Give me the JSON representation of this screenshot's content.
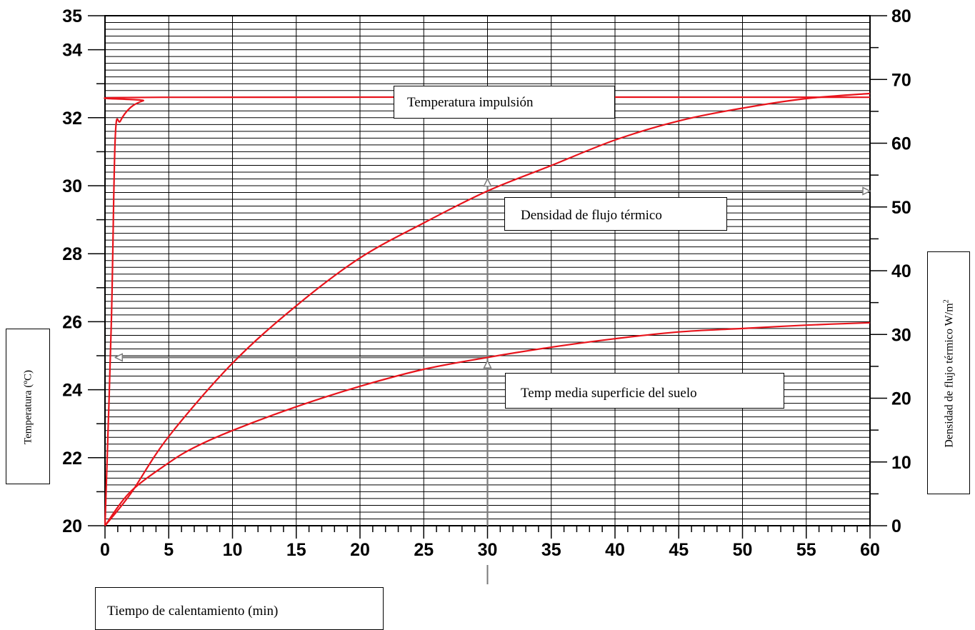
{
  "chart_data": {
    "type": "line",
    "xlabel": "Tiempo de calentamiento (min)",
    "ylabel_left": "Temperatura (ºC)",
    "ylabel_right_text": "Densidad de flujo térmico W/m",
    "ylabel_right_sup": "2",
    "xlim": [
      0,
      60
    ],
    "ylim_left": [
      20,
      35
    ],
    "ylim_right": [
      0,
      80
    ],
    "x_ticks": [
      "0",
      "5",
      "10",
      "15",
      "20",
      "25",
      "30",
      "35",
      "40",
      "45",
      "50",
      "55",
      "60"
    ],
    "y_left_ticks": [
      "20",
      "22",
      "24",
      "26",
      "28",
      "30",
      "32",
      "34",
      "35"
    ],
    "y_right_ticks": [
      "0",
      "10",
      "20",
      "30",
      "40",
      "50",
      "60",
      "70",
      "80"
    ],
    "grid": true,
    "series_colors": {
      "curves": "#e8141c",
      "guides": "#7a7a7a"
    },
    "annotations": {
      "impulsion": "Temperatura impulsión",
      "flujo": "Densidad de flujo térmico",
      "suelo": "Temp media superficie del suelo"
    },
    "series": [
      {
        "axis": "left",
        "label_ref": "impulsion",
        "x": [
          0,
          0.5,
          0.8,
          1.2,
          2,
          3,
          4.5,
          60
        ],
        "y": [
          20,
          26,
          31.4,
          31.9,
          32.3,
          32.5,
          32.6,
          32.6
        ]
      },
      {
        "axis": "right",
        "label_ref": "flujo",
        "x": [
          0,
          2,
          5,
          10,
          15,
          20,
          25,
          30,
          35,
          40,
          45,
          50,
          55,
          60
        ],
        "y": [
          0,
          5,
          14,
          25.5,
          34.5,
          42,
          47.5,
          52.5,
          56.5,
          60.5,
          63.5,
          65.5,
          67,
          67.8
        ]
      },
      {
        "axis": "left",
        "label_ref": "suelo",
        "x": [
          0,
          2,
          5,
          7,
          10,
          15,
          20,
          25,
          30,
          35,
          40,
          45,
          50,
          55,
          60
        ],
        "y": [
          20,
          21,
          21.85,
          22.3,
          22.8,
          23.5,
          24.1,
          24.6,
          24.95,
          25.25,
          25.5,
          25.7,
          25.8,
          25.9,
          25.97
        ]
      }
    ],
    "guides": [
      {
        "axis": "right",
        "from_x": 30,
        "to_x": 60,
        "y": 52.5,
        "arrow": "end"
      },
      {
        "axis": "left",
        "from_x": 30,
        "to_x": 0.8,
        "y": 24.95,
        "arrow": "end"
      },
      {
        "axis": "left",
        "from_x": 30,
        "to_x": 30,
        "y_from": 20,
        "y_to": 30.2,
        "arrow": "end"
      },
      {
        "axis": "left",
        "from_x": 30,
        "to_x": 30,
        "y_from": 24.3,
        "y_to": 24.85,
        "arrow": "end"
      }
    ]
  }
}
